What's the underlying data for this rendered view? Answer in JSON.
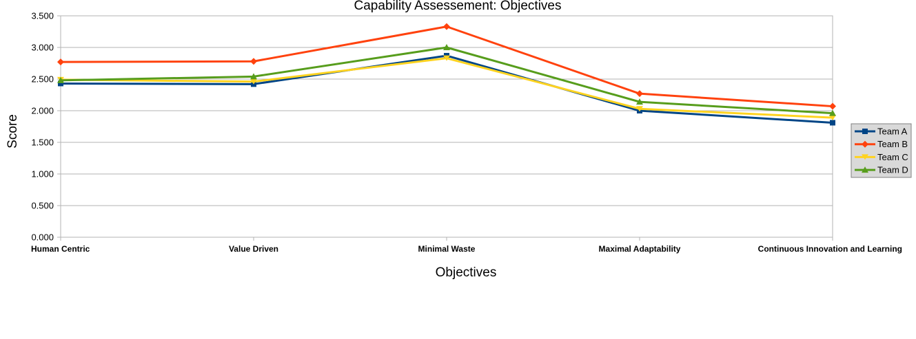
{
  "chart_data": {
    "type": "line",
    "title": "Capability Assessement: Objectives",
    "xlabel": "Objectives",
    "ylabel": "Score",
    "categories": [
      "Human Centric",
      "Value Driven",
      "Minimal Waste",
      "Maximal Adaptability",
      "Continuous Innovation and Learning"
    ],
    "ylim": [
      0,
      3.5
    ],
    "yticks": [
      "0.000",
      "0.500",
      "1.000",
      "1.500",
      "2.000",
      "2.500",
      "3.000",
      "3.500"
    ],
    "grid": true,
    "legend_position": "right",
    "series": [
      {
        "name": "Team A",
        "color": "#004586",
        "marker": "square",
        "values": [
          2.43,
          2.42,
          2.87,
          2.0,
          1.81
        ]
      },
      {
        "name": "Team B",
        "color": "#ff420e",
        "marker": "diamond",
        "values": [
          2.77,
          2.78,
          3.33,
          2.27,
          2.07
        ]
      },
      {
        "name": "Team C",
        "color": "#ffd320",
        "marker": "triangle-down",
        "values": [
          2.49,
          2.46,
          2.83,
          2.03,
          1.89
        ]
      },
      {
        "name": "Team D",
        "color": "#579d1c",
        "marker": "triangle-up",
        "values": [
          2.48,
          2.54,
          3.0,
          2.14,
          1.96
        ]
      }
    ]
  }
}
